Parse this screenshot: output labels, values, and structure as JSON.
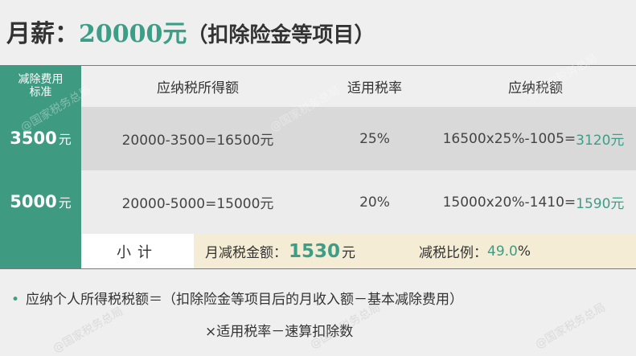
{
  "title": {
    "prefix": "月薪：",
    "amount": "20000",
    "unit": "元",
    "note": "（扣除险金等项目）"
  },
  "table": {
    "headers": {
      "deduction_standard": [
        "减除费用",
        "标准"
      ],
      "taxable_income": "应纳税所得额",
      "tax_rate": "适用税率",
      "tax_payable": "应纳税额"
    },
    "rows": [
      {
        "standard_num": "3500",
        "standard_unit": "元",
        "income": "20000-3500=16500元",
        "rate": "25%",
        "tax_formula": "16500x25%-1005=",
        "tax_value": "3120元"
      },
      {
        "standard_num": "5000",
        "standard_unit": "元",
        "income": "20000-5000=15000元",
        "rate": "20%",
        "tax_formula": "15000x20%-1410=",
        "tax_value": "1590元"
      }
    ],
    "subtotal": {
      "label": "小计",
      "reduction_label": "月减税金额：",
      "reduction_value": "1530",
      "reduction_unit": "元",
      "ratio_label": "减税比例：",
      "ratio_value": "49.0",
      "ratio_unit": "%"
    }
  },
  "formula": {
    "bullet": "•",
    "line1": "应纳个人所得税税额＝（扣除险金等项目后的月收入额－基本减除费用）",
    "line2": "×适用税率－速算扣除数"
  },
  "watermark": "@国家税务总局",
  "colors": {
    "accent_green": "#3c9e86",
    "left_column": "#3f9a82",
    "row1_bg": "#d9d9d9",
    "row2_bg": "#ececec",
    "subtotal_bg": "#f4ecd4",
    "page_bg": "#efefef"
  }
}
